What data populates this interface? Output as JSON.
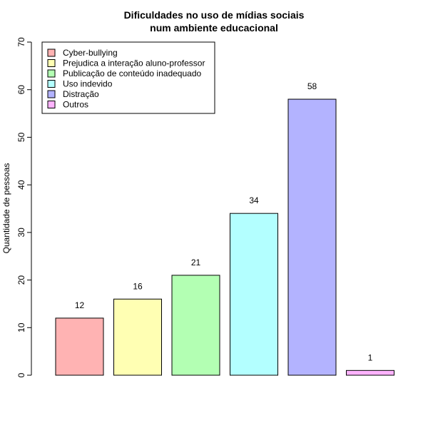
{
  "chart_data": {
    "type": "bar",
    "title_line1": "Dificuldades no uso de mídias sociais",
    "title_line2": "num ambiente educacional",
    "xlabel": "",
    "ylabel": "Quantidade de pessoas",
    "ylim": [
      0,
      70
    ],
    "yticks": [
      0,
      10,
      20,
      30,
      40,
      50,
      60,
      70
    ],
    "grid": false,
    "legend_position": "top-left",
    "categories": [
      "Cyber-bullying",
      "Prejudica a interação aluno-professor",
      "Publicação de conteúdo inadequado",
      "Uso indevido",
      "Distração",
      "Outros"
    ],
    "values": [
      12,
      16,
      21,
      34,
      58,
      1
    ],
    "colors": [
      "#ffb3b3",
      "#ffffb3",
      "#b3ffb3",
      "#b3ffff",
      "#b3b3ff",
      "#ffb3ff"
    ]
  }
}
